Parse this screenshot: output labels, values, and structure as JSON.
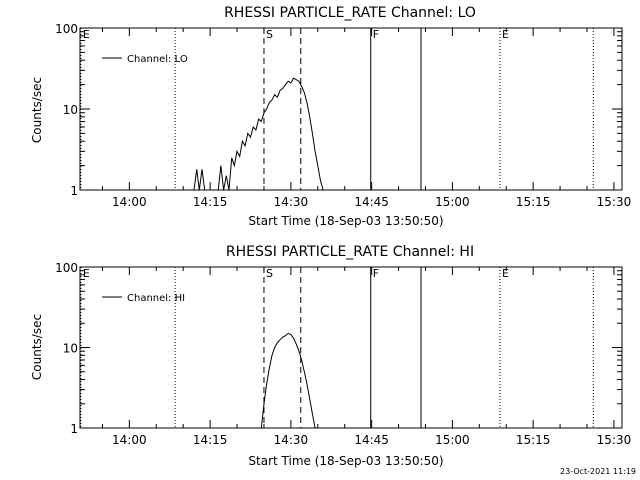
{
  "footer": {
    "timestamp": "23-Oct-2021 11:19"
  },
  "chart_data": [
    {
      "type": "line",
      "title": "RHESSI PARTICLE_RATE Channel: LO",
      "xlabel": "Start Time (18-Sep-03 13:50:50)",
      "ylabel": "Counts/sec",
      "yscale": "log",
      "ylim": [
        1,
        100
      ],
      "xlim": [
        "13:50:50",
        "15:31:30"
      ],
      "x_tick_labels": [
        "14:00",
        "14:15",
        "14:30",
        "14:45",
        "15:00",
        "15:15",
        "15:30"
      ],
      "y_tick_labels": [
        "1",
        "10",
        "100"
      ],
      "grid": false,
      "legend": {
        "position": "top-left",
        "entries": [
          "Channel: LO"
        ]
      },
      "markers": [
        {
          "label": "E",
          "time": "13:51:00",
          "style": "dotted"
        },
        {
          "label": "",
          "time": "14:08:30",
          "style": "dotted"
        },
        {
          "label": "S",
          "time": "14:25:00",
          "style": "dashed"
        },
        {
          "label": "",
          "time": "14:31:50",
          "style": "dashed"
        },
        {
          "label": "F",
          "time": "14:44:50",
          "style": "solid"
        },
        {
          "label": "",
          "time": "14:54:10",
          "style": "solid"
        },
        {
          "label": "E",
          "time": "15:08:50",
          "style": "dotted"
        },
        {
          "label": "",
          "time": "15:26:10",
          "style": "dotted"
        }
      ],
      "series": [
        {
          "name": "Channel: LO",
          "points": [
            [
              "14:12:00",
              1
            ],
            [
              "14:12:30",
              1.8
            ],
            [
              "14:13:00",
              1
            ],
            [
              "14:13:30",
              1.8
            ],
            [
              "14:14:00",
              1
            ],
            [
              "14:16:30",
              1
            ],
            [
              "14:17:00",
              2
            ],
            [
              "14:17:30",
              1
            ],
            [
              "14:18:00",
              1.5
            ],
            [
              "14:18:30",
              1
            ],
            [
              "14:19:00",
              2.5
            ],
            [
              "14:19:30",
              2
            ],
            [
              "14:20:00",
              3
            ],
            [
              "14:20:30",
              2.6
            ],
            [
              "14:21:00",
              4
            ],
            [
              "14:21:30",
              3.5
            ],
            [
              "14:22:00",
              5
            ],
            [
              "14:22:30",
              4.5
            ],
            [
              "14:23:00",
              6
            ],
            [
              "14:23:30",
              5.5
            ],
            [
              "14:24:00",
              7.5
            ],
            [
              "14:24:30",
              7
            ],
            [
              "14:25:00",
              9
            ],
            [
              "14:25:30",
              10
            ],
            [
              "14:26:00",
              12
            ],
            [
              "14:26:30",
              13
            ],
            [
              "14:27:00",
              15
            ],
            [
              "14:27:30",
              14
            ],
            [
              "14:28:00",
              17
            ],
            [
              "14:28:30",
              18
            ],
            [
              "14:29:00",
              20
            ],
            [
              "14:29:30",
              22
            ],
            [
              "14:30:00",
              21
            ],
            [
              "14:30:30",
              24
            ],
            [
              "14:31:00",
              23
            ],
            [
              "14:31:30",
              22
            ],
            [
              "14:32:00",
              19
            ],
            [
              "14:32:30",
              16
            ],
            [
              "14:33:00",
              12
            ],
            [
              "14:33:30",
              8
            ],
            [
              "14:34:00",
              5
            ],
            [
              "14:34:30",
              3
            ],
            [
              "14:35:00",
              2
            ],
            [
              "14:35:30",
              1.3
            ],
            [
              "14:36:00",
              1
            ]
          ]
        }
      ]
    },
    {
      "type": "line",
      "title": "RHESSI PARTICLE_RATE Channel: HI",
      "xlabel": "Start Time (18-Sep-03 13:50:50)",
      "ylabel": "Counts/sec",
      "yscale": "log",
      "ylim": [
        1,
        100
      ],
      "xlim": [
        "13:50:50",
        "15:31:30"
      ],
      "x_tick_labels": [
        "14:00",
        "14:15",
        "14:30",
        "14:45",
        "15:00",
        "15:15",
        "15:30"
      ],
      "y_tick_labels": [
        "1",
        "10",
        "100"
      ],
      "grid": false,
      "legend": {
        "position": "top-left",
        "entries": [
          "Channel: HI"
        ]
      },
      "markers": [
        {
          "label": "E",
          "time": "13:51:00",
          "style": "dotted"
        },
        {
          "label": "",
          "time": "14:08:30",
          "style": "dotted"
        },
        {
          "label": "S",
          "time": "14:25:00",
          "style": "dashed"
        },
        {
          "label": "",
          "time": "14:31:50",
          "style": "dashed"
        },
        {
          "label": "F",
          "time": "14:44:50",
          "style": "solid"
        },
        {
          "label": "",
          "time": "14:54:10",
          "style": "solid"
        },
        {
          "label": "E",
          "time": "15:08:50",
          "style": "dotted"
        },
        {
          "label": "",
          "time": "15:26:10",
          "style": "dotted"
        }
      ],
      "series": [
        {
          "name": "Channel: HI",
          "points": [
            [
              "14:24:30",
              1
            ],
            [
              "14:25:00",
              2
            ],
            [
              "14:25:30",
              3.5
            ],
            [
              "14:26:00",
              5.5
            ],
            [
              "14:26:30",
              8
            ],
            [
              "14:27:00",
              10
            ],
            [
              "14:27:30",
              11.5
            ],
            [
              "14:28:00",
              12.5
            ],
            [
              "14:28:30",
              13.5
            ],
            [
              "14:29:00",
              14
            ],
            [
              "14:29:30",
              15
            ],
            [
              "14:30:00",
              14.5
            ],
            [
              "14:30:30",
              13
            ],
            [
              "14:31:00",
              11
            ],
            [
              "14:31:30",
              9
            ],
            [
              "14:32:00",
              7
            ],
            [
              "14:32:30",
              5
            ],
            [
              "14:33:00",
              3.5
            ],
            [
              "14:33:30",
              2.3
            ],
            [
              "14:34:00",
              1.5
            ],
            [
              "14:34:30",
              1
            ]
          ]
        }
      ]
    }
  ]
}
